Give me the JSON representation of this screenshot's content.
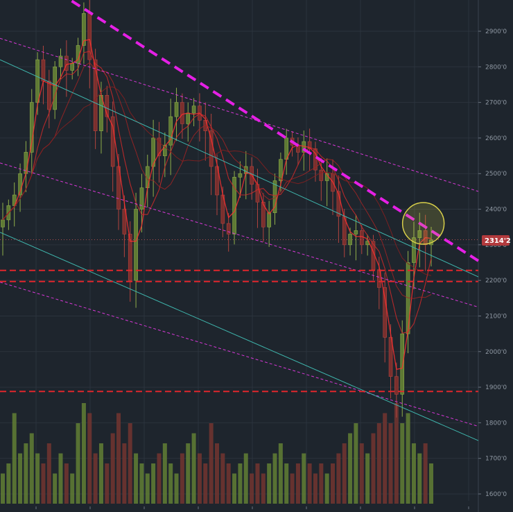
{
  "chart_data": {
    "type": "candlestick",
    "instrument_context": "price chart with volume",
    "y_axis": {
      "position": "right",
      "ticks": [
        1600,
        1700,
        1800,
        1900,
        2000,
        2100,
        2200,
        2300,
        2400,
        2500,
        2600,
        2700,
        2800,
        2900
      ],
      "tick_labels": [
        "1600'0",
        "1700'0",
        "1800'0",
        "1900'0",
        "2000'0",
        "2100'0",
        "2200'0",
        "2300'0",
        "2400'0",
        "2500'0",
        "2600'0",
        "2700'0",
        "2800'0",
        "2900'0"
      ],
      "range": [
        1580,
        2990
      ]
    },
    "x_axis": {
      "tick_count": 9,
      "tick_labels_visible": false
    },
    "grid": true,
    "current_price": {
      "value": 2314.2,
      "label": "2314'2"
    },
    "horizontal_levels": [
      {
        "value": 2228,
        "color": "#e0262c",
        "style": "dashed"
      },
      {
        "value": 2197,
        "color": "#e0262c",
        "style": "dashed"
      },
      {
        "value": 1888,
        "color": "#e0262c",
        "style": "dashed"
      }
    ],
    "trendlines": [
      {
        "name_hint": "main-resistance",
        "color": "#e520e5",
        "style": "dashed-thick",
        "points": [
          [
            0.15,
            2985
          ],
          [
            1.0,
            2255
          ]
        ]
      },
      {
        "name_hint": "upper-channel",
        "color": "#d838d8",
        "style": "thin-dashed",
        "points": [
          [
            0.0,
            2880
          ],
          [
            1.0,
            2450
          ]
        ]
      },
      {
        "name_hint": "mid-channel",
        "color": "#d838d8",
        "style": "thin-dashed",
        "points": [
          [
            0.0,
            2530
          ],
          [
            1.0,
            2125
          ]
        ]
      },
      {
        "name_hint": "lower-channel",
        "color": "#d838d8",
        "style": "thin-dashed",
        "points": [
          [
            0.0,
            2195
          ],
          [
            1.0,
            1790
          ]
        ]
      },
      {
        "name_hint": "teal-upper",
        "color": "#3fb7ae",
        "style": "solid-thin",
        "points": [
          [
            0.0,
            2820
          ],
          [
            1.0,
            2210
          ]
        ]
      },
      {
        "name_hint": "teal-lower",
        "color": "#3fb7ae",
        "style": "solid-thin",
        "points": [
          [
            0.0,
            2335
          ],
          [
            1.0,
            1750
          ]
        ]
      }
    ],
    "highlight_circle": {
      "x_frac": 0.885,
      "price": 2360,
      "color": "#d9d04a"
    },
    "series_close": [
      2370,
      2410,
      2440,
      2500,
      2560,
      2700,
      2820,
      2760,
      2680,
      2800,
      2830,
      2790,
      2810,
      2860,
      2950,
      2820,
      2620,
      2720,
      2660,
      2520,
      2400,
      2330,
      2200,
      2400,
      2460,
      2520,
      2600,
      2550,
      2580,
      2660,
      2700,
      2640,
      2670,
      2690,
      2650,
      2620,
      2520,
      2440,
      2360,
      2330,
      2490,
      2500,
      2520,
      2470,
      2420,
      2350,
      2390,
      2480,
      2540,
      2600,
      2580,
      2560,
      2590,
      2570,
      2510,
      2480,
      2500,
      2450,
      2380,
      2300,
      2330,
      2340,
      2300,
      2310,
      2230,
      2180,
      2040,
      1930,
      1880,
      2050,
      2250,
      2320,
      2340,
      2300,
      2314
    ],
    "volume_relative": [
      0.3,
      0.4,
      0.9,
      0.5,
      0.6,
      0.7,
      0.5,
      0.4,
      0.6,
      0.3,
      0.5,
      0.4,
      0.3,
      0.8,
      1.0,
      0.9,
      0.5,
      0.6,
      0.4,
      0.7,
      0.9,
      0.6,
      0.8,
      0.5,
      0.4,
      0.3,
      0.4,
      0.5,
      0.6,
      0.4,
      0.3,
      0.5,
      0.6,
      0.7,
      0.5,
      0.4,
      0.8,
      0.6,
      0.5,
      0.4,
      0.3,
      0.4,
      0.5,
      0.3,
      0.4,
      0.3,
      0.4,
      0.5,
      0.6,
      0.4,
      0.3,
      0.4,
      0.5,
      0.4,
      0.3,
      0.4,
      0.3,
      0.4,
      0.5,
      0.6,
      0.7,
      0.8,
      0.6,
      0.5,
      0.7,
      0.8,
      0.9,
      0.8,
      1.0,
      0.8,
      0.9,
      0.6,
      0.5,
      0.6,
      0.4
    ]
  }
}
